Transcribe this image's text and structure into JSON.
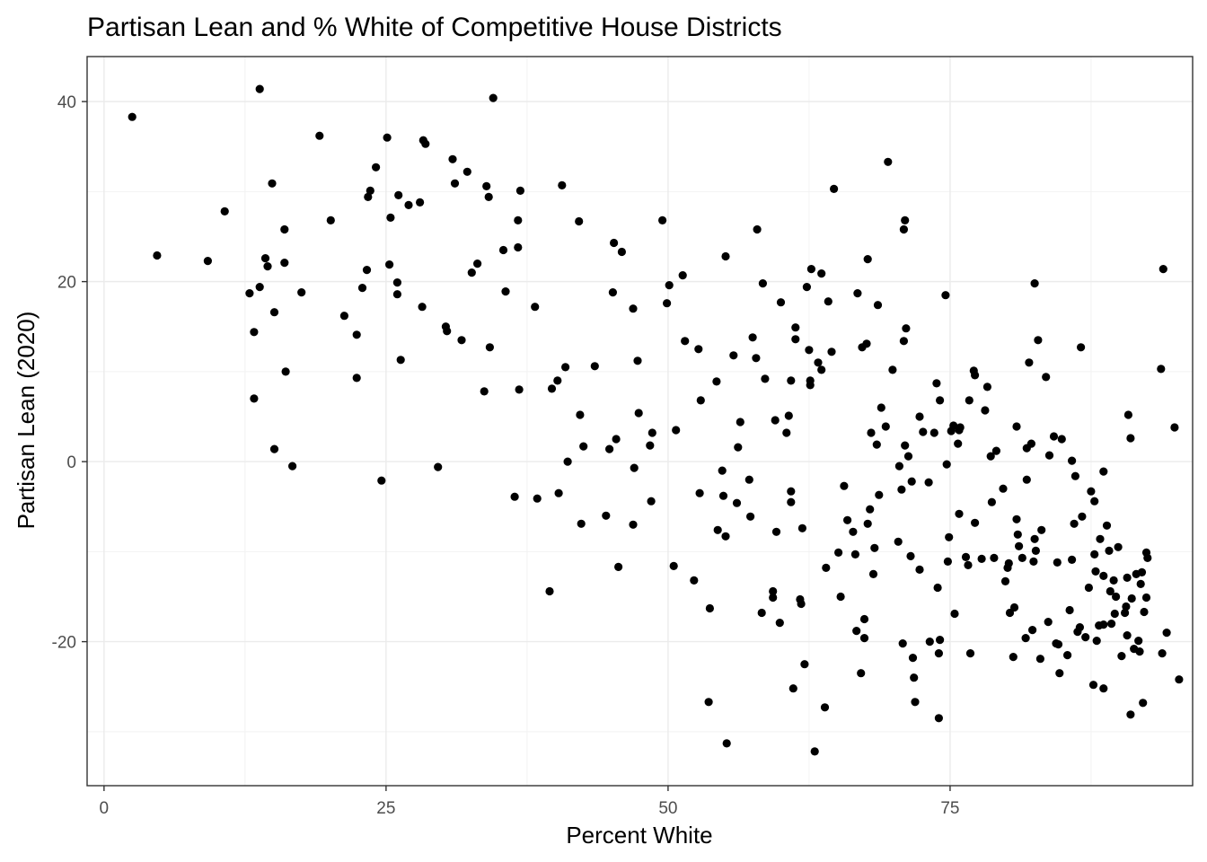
{
  "chart_data": {
    "type": "scatter",
    "title": "Partisan Lean and % White of Competitive House Districts",
    "xlabel": "Percent White",
    "ylabel": "Partisan Lean (2020)",
    "xlim": [
      -1.5,
      96.5
    ],
    "ylim": [
      -36,
      45
    ],
    "xticks": [
      0,
      25,
      50,
      75
    ],
    "xtick_labels": [
      "0",
      "25",
      "50",
      "75"
    ],
    "yticks": [
      -20,
      0,
      20,
      40
    ],
    "ytick_labels": [
      "-20",
      "0",
      "20",
      "40"
    ],
    "grid": true,
    "point_color": "#000000",
    "points": [
      [
        2.5,
        38.3
      ],
      [
        4.7,
        22.9
      ],
      [
        9.2,
        22.3
      ],
      [
        10.7,
        27.8
      ],
      [
        12.9,
        18.7
      ],
      [
        13.3,
        7.0
      ],
      [
        13.3,
        14.4
      ],
      [
        13.8,
        41.4
      ],
      [
        13.8,
        19.4
      ],
      [
        14.3,
        22.6
      ],
      [
        14.5,
        21.7
      ],
      [
        14.9,
        30.9
      ],
      [
        15.1,
        16.6
      ],
      [
        15.1,
        1.4
      ],
      [
        16.0,
        25.8
      ],
      [
        16.0,
        22.1
      ],
      [
        16.1,
        10.0
      ],
      [
        16.7,
        -0.5
      ],
      [
        17.5,
        18.8
      ],
      [
        19.1,
        36.2
      ],
      [
        20.1,
        26.8
      ],
      [
        21.3,
        16.2
      ],
      [
        22.4,
        14.1
      ],
      [
        22.4,
        9.3
      ],
      [
        22.9,
        19.3
      ],
      [
        23.3,
        21.3
      ],
      [
        23.4,
        29.4
      ],
      [
        23.6,
        30.1
      ],
      [
        24.1,
        32.7
      ],
      [
        24.6,
        -2.1
      ],
      [
        25.1,
        36.0
      ],
      [
        25.3,
        21.9
      ],
      [
        25.4,
        27.1
      ],
      [
        26.0,
        18.6
      ],
      [
        26.0,
        19.9
      ],
      [
        26.1,
        29.6
      ],
      [
        26.3,
        11.3
      ],
      [
        27.0,
        28.5
      ],
      [
        28.0,
        28.8
      ],
      [
        28.2,
        17.2
      ],
      [
        28.3,
        35.7
      ],
      [
        28.5,
        35.3
      ],
      [
        29.6,
        -0.6
      ],
      [
        30.3,
        15.0
      ],
      [
        30.4,
        14.5
      ],
      [
        30.9,
        33.6
      ],
      [
        31.1,
        30.9
      ],
      [
        31.7,
        13.5
      ],
      [
        32.2,
        32.2
      ],
      [
        32.6,
        21.0
      ],
      [
        33.1,
        22.0
      ],
      [
        33.7,
        7.8
      ],
      [
        33.9,
        30.6
      ],
      [
        34.1,
        29.4
      ],
      [
        34.2,
        12.7
      ],
      [
        34.5,
        40.4
      ],
      [
        35.4,
        23.5
      ],
      [
        35.6,
        18.9
      ],
      [
        36.4,
        -3.9
      ],
      [
        36.7,
        26.8
      ],
      [
        36.7,
        23.8
      ],
      [
        36.8,
        8.0
      ],
      [
        36.9,
        30.1
      ],
      [
        38.2,
        17.2
      ],
      [
        38.4,
        -4.1
      ],
      [
        39.5,
        -14.4
      ],
      [
        39.7,
        8.1
      ],
      [
        40.2,
        9.0
      ],
      [
        40.3,
        -3.5
      ],
      [
        40.6,
        30.7
      ],
      [
        40.9,
        10.5
      ],
      [
        41.1,
        0.0
      ],
      [
        42.1,
        26.7
      ],
      [
        42.2,
        5.2
      ],
      [
        42.3,
        -6.9
      ],
      [
        42.5,
        1.7
      ],
      [
        43.5,
        10.6
      ],
      [
        44.5,
        -6.0
      ],
      [
        44.8,
        1.4
      ],
      [
        45.1,
        18.8
      ],
      [
        45.2,
        24.3
      ],
      [
        45.4,
        2.5
      ],
      [
        45.6,
        -11.7
      ],
      [
        45.9,
        23.3
      ],
      [
        46.9,
        17.0
      ],
      [
        46.9,
        -7.0
      ],
      [
        47.0,
        -0.7
      ],
      [
        47.3,
        11.2
      ],
      [
        47.4,
        5.4
      ],
      [
        48.4,
        1.8
      ],
      [
        48.5,
        -4.4
      ],
      [
        48.6,
        3.2
      ],
      [
        49.5,
        26.8
      ],
      [
        49.9,
        17.6
      ],
      [
        50.1,
        19.6
      ],
      [
        50.5,
        -11.6
      ],
      [
        50.7,
        3.5
      ],
      [
        51.3,
        20.7
      ],
      [
        51.5,
        13.4
      ],
      [
        52.3,
        -13.2
      ],
      [
        52.7,
        12.5
      ],
      [
        52.8,
        -3.5
      ],
      [
        52.9,
        6.8
      ],
      [
        53.7,
        -16.3
      ],
      [
        53.6,
        -26.7
      ],
      [
        54.3,
        8.9
      ],
      [
        54.4,
        -7.6
      ],
      [
        54.8,
        -1.0
      ],
      [
        54.9,
        -3.8
      ],
      [
        55.1,
        -8.3
      ],
      [
        55.1,
        22.8
      ],
      [
        55.2,
        -31.3
      ],
      [
        55.8,
        11.8
      ],
      [
        56.1,
        -4.6
      ],
      [
        56.2,
        1.6
      ],
      [
        56.4,
        4.4
      ],
      [
        57.2,
        -2.0
      ],
      [
        57.3,
        -6.1
      ],
      [
        57.5,
        13.8
      ],
      [
        57.8,
        11.5
      ],
      [
        57.9,
        25.8
      ],
      [
        58.3,
        -16.8
      ],
      [
        58.4,
        19.8
      ],
      [
        58.6,
        9.2
      ],
      [
        59.3,
        -14.4
      ],
      [
        59.3,
        -15.1
      ],
      [
        59.5,
        4.6
      ],
      [
        59.6,
        -7.8
      ],
      [
        59.9,
        -17.9
      ],
      [
        60.0,
        17.7
      ],
      [
        60.5,
        3.2
      ],
      [
        60.7,
        5.1
      ],
      [
        60.9,
        -3.3
      ],
      [
        60.9,
        9.0
      ],
      [
        60.9,
        -4.5
      ],
      [
        61.1,
        -25.2
      ],
      [
        61.3,
        14.9
      ],
      [
        61.3,
        13.6
      ],
      [
        61.7,
        -15.3
      ],
      [
        61.8,
        -15.8
      ],
      [
        61.9,
        -7.4
      ],
      [
        62.1,
        -22.5
      ],
      [
        62.3,
        19.4
      ],
      [
        62.5,
        12.4
      ],
      [
        62.6,
        9.0
      ],
      [
        62.6,
        8.5
      ],
      [
        62.7,
        21.4
      ],
      [
        63.0,
        -32.2
      ],
      [
        63.3,
        11.0
      ],
      [
        63.6,
        10.2
      ],
      [
        63.6,
        20.9
      ],
      [
        63.9,
        -27.3
      ],
      [
        64.0,
        -11.8
      ],
      [
        64.2,
        17.8
      ],
      [
        64.5,
        12.2
      ],
      [
        64.7,
        30.3
      ],
      [
        65.1,
        -10.1
      ],
      [
        65.3,
        -15.0
      ],
      [
        65.6,
        -2.7
      ],
      [
        65.9,
        -6.5
      ],
      [
        66.4,
        -7.8
      ],
      [
        66.6,
        -10.3
      ],
      [
        66.7,
        -18.8
      ],
      [
        66.8,
        18.7
      ],
      [
        67.1,
        -23.5
      ],
      [
        67.2,
        12.7
      ],
      [
        67.4,
        -19.6
      ],
      [
        67.4,
        -17.5
      ],
      [
        67.6,
        13.1
      ],
      [
        67.7,
        22.5
      ],
      [
        67.7,
        -6.9
      ],
      [
        67.9,
        -5.3
      ],
      [
        68.0,
        3.2
      ],
      [
        68.2,
        -12.5
      ],
      [
        68.3,
        -9.6
      ],
      [
        68.5,
        1.9
      ],
      [
        68.6,
        17.4
      ],
      [
        68.7,
        -3.7
      ],
      [
        68.9,
        6.0
      ],
      [
        69.3,
        3.9
      ],
      [
        69.5,
        33.3
      ],
      [
        69.9,
        10.2
      ],
      [
        70.4,
        -8.9
      ],
      [
        70.5,
        -0.5
      ],
      [
        70.7,
        -3.1
      ],
      [
        70.8,
        -20.2
      ],
      [
        70.9,
        13.4
      ],
      [
        70.9,
        25.8
      ],
      [
        71.0,
        1.8
      ],
      [
        71.0,
        26.8
      ],
      [
        71.1,
        14.8
      ],
      [
        71.3,
        0.6
      ],
      [
        71.5,
        -10.5
      ],
      [
        71.6,
        -2.2
      ],
      [
        71.7,
        -21.8
      ],
      [
        71.8,
        -24.0
      ],
      [
        71.9,
        -26.7
      ],
      [
        72.3,
        5.0
      ],
      [
        72.3,
        -12.0
      ],
      [
        72.6,
        3.3
      ],
      [
        73.1,
        -2.3
      ],
      [
        73.2,
        -20.0
      ],
      [
        73.6,
        3.2
      ],
      [
        73.8,
        8.7
      ],
      [
        73.9,
        -14.0
      ],
      [
        74.0,
        -28.5
      ],
      [
        74.0,
        -21.3
      ],
      [
        74.1,
        6.8
      ],
      [
        74.1,
        -19.8
      ],
      [
        74.6,
        18.5
      ],
      [
        74.7,
        -0.3
      ],
      [
        74.8,
        -11.1
      ],
      [
        74.9,
        -8.4
      ],
      [
        75.1,
        3.4
      ],
      [
        75.3,
        4.0
      ],
      [
        75.4,
        -16.9
      ],
      [
        75.7,
        2.0
      ],
      [
        75.8,
        3.5
      ],
      [
        75.8,
        -5.8
      ],
      [
        75.9,
        3.8
      ],
      [
        76.4,
        -10.6
      ],
      [
        76.6,
        -11.5
      ],
      [
        76.7,
        6.8
      ],
      [
        76.8,
        -21.3
      ],
      [
        77.1,
        10.1
      ],
      [
        77.2,
        -6.8
      ],
      [
        77.2,
        9.6
      ],
      [
        77.8,
        -10.8
      ],
      [
        78.1,
        5.7
      ],
      [
        78.3,
        8.3
      ],
      [
        78.6,
        0.6
      ],
      [
        78.7,
        -4.5
      ],
      [
        78.9,
        -10.7
      ],
      [
        79.1,
        1.2
      ],
      [
        79.7,
        -3.0
      ],
      [
        79.9,
        -13.3
      ],
      [
        80.1,
        -11.8
      ],
      [
        80.2,
        -11.3
      ],
      [
        80.3,
        -16.8
      ],
      [
        80.6,
        -21.7
      ],
      [
        80.7,
        -16.2
      ],
      [
        80.9,
        -6.4
      ],
      [
        80.9,
        3.9
      ],
      [
        81.0,
        -8.1
      ],
      [
        81.1,
        -9.4
      ],
      [
        81.4,
        -10.7
      ],
      [
        81.7,
        -19.6
      ],
      [
        81.8,
        -2.0
      ],
      [
        81.8,
        1.5
      ],
      [
        82.0,
        11.0
      ],
      [
        82.2,
        2.0
      ],
      [
        82.3,
        -18.7
      ],
      [
        82.4,
        -11.1
      ],
      [
        82.5,
        19.8
      ],
      [
        82.5,
        -8.6
      ],
      [
        82.6,
        -9.9
      ],
      [
        82.8,
        13.5
      ],
      [
        83.0,
        -21.9
      ],
      [
        83.1,
        -7.6
      ],
      [
        83.5,
        9.4
      ],
      [
        83.7,
        -17.8
      ],
      [
        83.8,
        0.7
      ],
      [
        84.2,
        2.8
      ],
      [
        84.4,
        -20.2
      ],
      [
        84.5,
        -11.2
      ],
      [
        84.6,
        -20.3
      ],
      [
        84.7,
        -23.5
      ],
      [
        84.9,
        2.5
      ],
      [
        85.4,
        -21.5
      ],
      [
        85.6,
        -16.5
      ],
      [
        85.8,
        -10.9
      ],
      [
        85.8,
        0.1
      ],
      [
        86.0,
        -6.9
      ],
      [
        86.1,
        -1.6
      ],
      [
        86.3,
        -18.9
      ],
      [
        86.5,
        -18.4
      ],
      [
        86.6,
        12.7
      ],
      [
        86.7,
        -6.1
      ],
      [
        87.0,
        -19.5
      ],
      [
        87.3,
        -14.0
      ],
      [
        87.5,
        -3.3
      ],
      [
        87.7,
        -24.8
      ],
      [
        87.8,
        -4.4
      ],
      [
        87.8,
        -10.3
      ],
      [
        87.9,
        -12.2
      ],
      [
        88.0,
        -19.9
      ],
      [
        88.2,
        -18.2
      ],
      [
        88.3,
        -8.6
      ],
      [
        88.6,
        -12.7
      ],
      [
        88.6,
        -25.2
      ],
      [
        88.6,
        -1.1
      ],
      [
        88.6,
        -18.1
      ],
      [
        88.9,
        -7.1
      ],
      [
        89.1,
        -9.9
      ],
      [
        89.2,
        -14.4
      ],
      [
        89.3,
        -18.0
      ],
      [
        89.5,
        -13.2
      ],
      [
        89.6,
        -16.9
      ],
      [
        89.7,
        -15.0
      ],
      [
        89.9,
        -9.5
      ],
      [
        90.2,
        -21.6
      ],
      [
        90.5,
        -16.8
      ],
      [
        90.6,
        -16.1
      ],
      [
        90.7,
        -12.9
      ],
      [
        90.7,
        -19.3
      ],
      [
        90.8,
        5.2
      ],
      [
        91.0,
        -28.1
      ],
      [
        91.0,
        2.6
      ],
      [
        91.1,
        -15.2
      ],
      [
        91.3,
        -20.8
      ],
      [
        91.5,
        -12.5
      ],
      [
        91.7,
        -19.9
      ],
      [
        91.8,
        -21.1
      ],
      [
        91.9,
        -13.6
      ],
      [
        92.0,
        -12.3
      ],
      [
        92.1,
        -26.8
      ],
      [
        92.2,
        -16.7
      ],
      [
        92.4,
        -10.1
      ],
      [
        92.4,
        -15.1
      ],
      [
        92.5,
        -10.7
      ],
      [
        93.7,
        10.3
      ],
      [
        93.8,
        -21.3
      ],
      [
        93.9,
        21.4
      ],
      [
        94.2,
        -19.0
      ],
      [
        94.9,
        3.8
      ],
      [
        95.3,
        -24.2
      ]
    ]
  }
}
